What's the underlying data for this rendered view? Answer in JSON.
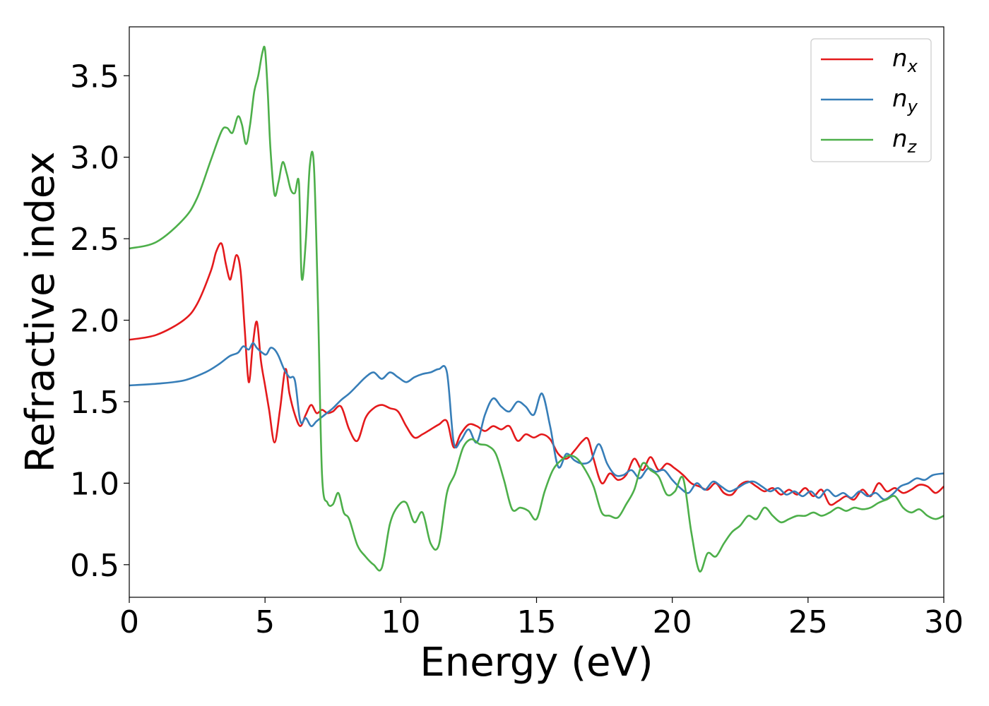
{
  "chart_data": {
    "type": "line",
    "title": "",
    "xlabel": "Energy (eV)",
    "ylabel": "Refractive index",
    "xlim": [
      0,
      30
    ],
    "ylim": [
      0.3,
      3.8
    ],
    "xticks": [
      0,
      5,
      10,
      15,
      20,
      25,
      30
    ],
    "yticks": [
      0.5,
      1.0,
      1.5,
      2.0,
      2.5,
      3.0,
      3.5
    ],
    "xtick_labels": [
      "0",
      "5",
      "10",
      "15",
      "20",
      "25",
      "30"
    ],
    "ytick_labels": [
      "0.5",
      "1.0",
      "1.5",
      "2.0",
      "2.5",
      "3.0",
      "3.5"
    ],
    "grid": false,
    "legend_position": "top-right",
    "series": [
      {
        "name": "n",
        "subscript": "x",
        "color": "#e41a1c",
        "x": [
          0,
          1,
          2,
          2.5,
          3.0,
          3.2,
          3.4,
          3.55,
          3.7,
          3.8,
          3.95,
          4.1,
          4.25,
          4.4,
          4.55,
          4.7,
          4.85,
          5.0,
          5.15,
          5.35,
          5.55,
          5.75,
          5.9,
          6.1,
          6.3,
          6.5,
          6.7,
          6.9,
          7.1,
          7.3,
          7.5,
          7.8,
          8.1,
          8.4,
          8.7,
          9.0,
          9.3,
          9.6,
          9.9,
          10.2,
          10.5,
          10.8,
          11.1,
          11.4,
          11.7,
          11.95,
          12.2,
          12.5,
          12.8,
          13.1,
          13.4,
          13.7,
          14.0,
          14.3,
          14.6,
          14.9,
          15.2,
          15.5,
          15.8,
          16.1,
          16.4,
          16.7,
          16.9,
          17.1,
          17.4,
          17.7,
          18.0,
          18.3,
          18.6,
          18.9,
          19.2,
          19.5,
          19.8,
          20.1,
          20.4,
          20.7,
          21.0,
          21.3,
          21.6,
          21.9,
          22.2,
          22.5,
          22.8,
          23.1,
          23.4,
          23.7,
          24.0,
          24.3,
          24.6,
          24.9,
          25.2,
          25.5,
          25.8,
          26.1,
          26.4,
          26.7,
          27.0,
          27.3,
          27.6,
          27.9,
          28.2,
          28.5,
          28.8,
          29.1,
          29.4,
          29.7,
          30.0
        ],
        "y": [
          1.88,
          1.91,
          2.0,
          2.1,
          2.3,
          2.42,
          2.47,
          2.35,
          2.25,
          2.3,
          2.4,
          2.3,
          1.95,
          1.62,
          1.85,
          1.99,
          1.75,
          1.6,
          1.45,
          1.25,
          1.45,
          1.7,
          1.55,
          1.42,
          1.35,
          1.42,
          1.48,
          1.43,
          1.45,
          1.43,
          1.44,
          1.47,
          1.33,
          1.26,
          1.4,
          1.46,
          1.48,
          1.46,
          1.44,
          1.35,
          1.28,
          1.3,
          1.33,
          1.36,
          1.38,
          1.22,
          1.3,
          1.36,
          1.35,
          1.32,
          1.35,
          1.33,
          1.35,
          1.26,
          1.3,
          1.28,
          1.3,
          1.27,
          1.18,
          1.15,
          1.2,
          1.26,
          1.27,
          1.15,
          1.0,
          1.06,
          1.02,
          1.05,
          1.15,
          1.08,
          1.16,
          1.08,
          1.12,
          1.09,
          1.05,
          1.0,
          0.98,
          0.96,
          1.0,
          0.94,
          0.93,
          0.99,
          1.01,
          0.98,
          0.95,
          0.97,
          0.93,
          0.96,
          0.93,
          0.97,
          0.92,
          0.96,
          0.87,
          0.89,
          0.92,
          0.9,
          0.96,
          0.92,
          1.0,
          0.95,
          0.97,
          0.94,
          0.96,
          0.99,
          0.98,
          0.94,
          0.98
        ]
      },
      {
        "name": "n",
        "subscript": "y",
        "color": "#377eb8",
        "x": [
          0,
          1,
          2,
          2.8,
          3.3,
          3.7,
          4.0,
          4.2,
          4.4,
          4.55,
          4.7,
          4.9,
          5.05,
          5.2,
          5.35,
          5.5,
          5.7,
          5.9,
          6.1,
          6.3,
          6.5,
          6.7,
          6.9,
          7.2,
          7.5,
          7.8,
          8.1,
          8.4,
          8.7,
          9.0,
          9.3,
          9.6,
          9.9,
          10.2,
          10.5,
          10.8,
          11.1,
          11.4,
          11.7,
          11.95,
          12.2,
          12.5,
          12.8,
          13.1,
          13.4,
          13.7,
          14.0,
          14.3,
          14.6,
          14.9,
          15.2,
          15.5,
          15.8,
          16.1,
          16.4,
          16.7,
          17.0,
          17.3,
          17.6,
          17.9,
          18.2,
          18.5,
          18.8,
          19.1,
          19.4,
          19.7,
          20.0,
          20.3,
          20.6,
          20.9,
          21.2,
          21.5,
          21.8,
          22.1,
          22.4,
          22.7,
          23.0,
          23.3,
          23.6,
          23.9,
          24.2,
          24.5,
          24.8,
          25.1,
          25.4,
          25.7,
          26.0,
          26.3,
          26.6,
          26.9,
          27.2,
          27.5,
          27.8,
          28.1,
          28.4,
          28.7,
          29.0,
          29.3,
          29.6,
          30.0
        ],
        "y": [
          1.6,
          1.61,
          1.63,
          1.68,
          1.73,
          1.78,
          1.8,
          1.84,
          1.82,
          1.86,
          1.83,
          1.8,
          1.79,
          1.83,
          1.82,
          1.78,
          1.7,
          1.65,
          1.63,
          1.38,
          1.4,
          1.35,
          1.38,
          1.42,
          1.46,
          1.51,
          1.55,
          1.6,
          1.65,
          1.68,
          1.64,
          1.68,
          1.65,
          1.62,
          1.65,
          1.67,
          1.68,
          1.7,
          1.68,
          1.25,
          1.26,
          1.33,
          1.25,
          1.42,
          1.52,
          1.47,
          1.44,
          1.5,
          1.47,
          1.42,
          1.55,
          1.35,
          1.1,
          1.18,
          1.14,
          1.12,
          1.14,
          1.24,
          1.12,
          1.05,
          1.05,
          1.08,
          1.03,
          1.09,
          1.07,
          1.08,
          1.02,
          0.97,
          0.94,
          1.0,
          0.96,
          1.01,
          0.98,
          0.95,
          0.97,
          1.0,
          1.01,
          0.98,
          0.95,
          0.97,
          0.93,
          0.95,
          0.92,
          0.95,
          0.91,
          0.96,
          0.92,
          0.94,
          0.91,
          0.95,
          0.92,
          0.94,
          0.9,
          0.93,
          0.98,
          1.0,
          1.03,
          1.02,
          1.05,
          1.06
        ]
      },
      {
        "name": "n",
        "subscript": "z",
        "color": "#4daf4a",
        "x": [
          0,
          1,
          2,
          2.5,
          3.0,
          3.4,
          3.6,
          3.8,
          4.0,
          4.15,
          4.3,
          4.45,
          4.6,
          4.75,
          4.9,
          5.0,
          5.1,
          5.2,
          5.35,
          5.5,
          5.65,
          5.8,
          5.95,
          6.1,
          6.25,
          6.35,
          6.5,
          6.65,
          6.8,
          6.95,
          7.1,
          7.3,
          7.5,
          7.7,
          7.9,
          8.1,
          8.4,
          8.7,
          9.0,
          9.3,
          9.6,
          9.9,
          10.2,
          10.5,
          10.8,
          11.1,
          11.4,
          11.7,
          12.0,
          12.3,
          12.6,
          12.9,
          13.2,
          13.5,
          13.8,
          14.1,
          14.4,
          14.7,
          15.0,
          15.3,
          15.6,
          15.9,
          16.2,
          16.5,
          16.8,
          17.1,
          17.4,
          17.7,
          18.0,
          18.3,
          18.6,
          18.9,
          19.2,
          19.5,
          19.8,
          20.1,
          20.4,
          20.7,
          21.0,
          21.3,
          21.6,
          21.9,
          22.2,
          22.5,
          22.8,
          23.1,
          23.4,
          23.7,
          24.0,
          24.3,
          24.6,
          24.9,
          25.2,
          25.5,
          25.8,
          26.1,
          26.4,
          26.7,
          27.0,
          27.3,
          27.6,
          27.9,
          28.2,
          28.5,
          28.8,
          29.1,
          29.4,
          29.7,
          30.0
        ],
        "y": [
          2.44,
          2.48,
          2.62,
          2.75,
          2.98,
          3.16,
          3.18,
          3.15,
          3.25,
          3.2,
          3.08,
          3.2,
          3.4,
          3.5,
          3.64,
          3.66,
          3.4,
          3.05,
          2.77,
          2.85,
          2.97,
          2.9,
          2.8,
          2.78,
          2.84,
          2.26,
          2.48,
          2.95,
          2.95,
          2.1,
          1.05,
          0.88,
          0.87,
          0.94,
          0.82,
          0.78,
          0.62,
          0.55,
          0.5,
          0.48,
          0.75,
          0.86,
          0.88,
          0.76,
          0.82,
          0.63,
          0.62,
          0.94,
          1.06,
          1.22,
          1.27,
          1.24,
          1.23,
          1.18,
          1.02,
          0.84,
          0.85,
          0.83,
          0.78,
          0.95,
          1.08,
          1.14,
          1.17,
          1.15,
          1.08,
          0.98,
          0.82,
          0.8,
          0.79,
          0.87,
          0.96,
          1.12,
          1.08,
          1.04,
          0.93,
          0.95,
          1.03,
          0.7,
          0.46,
          0.57,
          0.55,
          0.63,
          0.7,
          0.74,
          0.8,
          0.78,
          0.85,
          0.8,
          0.76,
          0.78,
          0.8,
          0.8,
          0.82,
          0.8,
          0.82,
          0.85,
          0.83,
          0.85,
          0.84,
          0.85,
          0.88,
          0.9,
          0.92,
          0.85,
          0.82,
          0.84,
          0.8,
          0.78,
          0.8
        ]
      }
    ]
  }
}
